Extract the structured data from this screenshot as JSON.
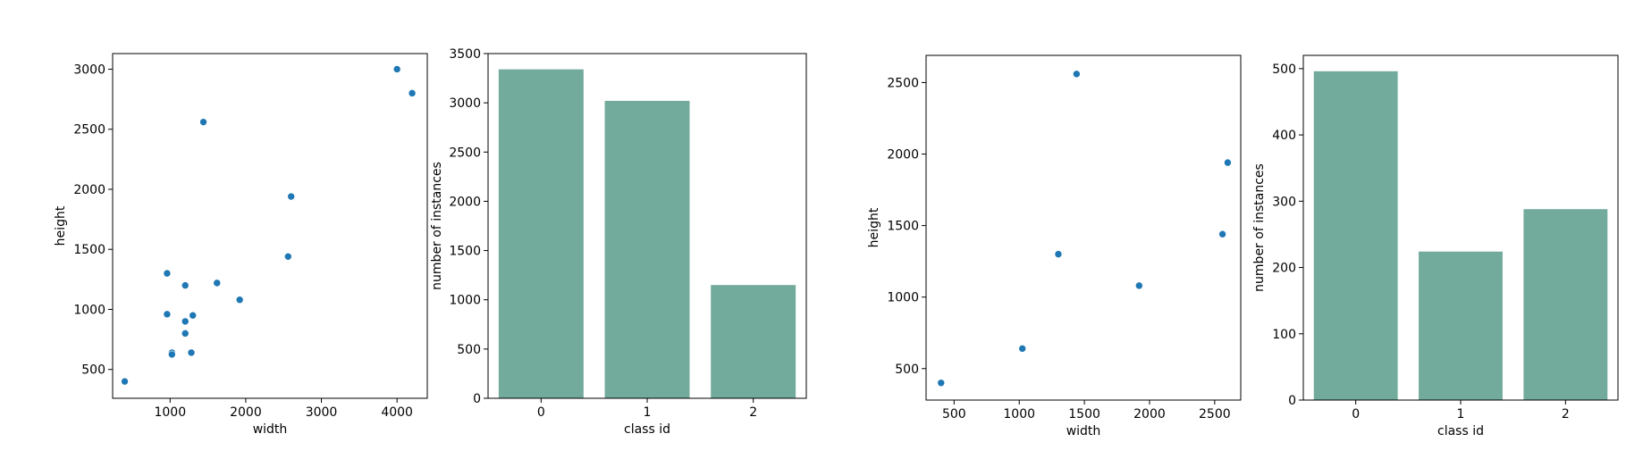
{
  "colors": {
    "scatter_point": "#1f77b4",
    "bar_fill": "#72aa9c",
    "axis": "#000000"
  },
  "chart_data": [
    {
      "type": "scatter",
      "xlabel": "width",
      "ylabel": "height",
      "xlim": [
        240,
        4400
      ],
      "ylim": [
        260,
        3130
      ],
      "xticks": [
        1000,
        2000,
        3000,
        4000
      ],
      "yticks": [
        500,
        1000,
        1500,
        2000,
        2500,
        3000
      ],
      "grid": false,
      "points": [
        {
          "x": 400,
          "y": 400
        },
        {
          "x": 960,
          "y": 1300
        },
        {
          "x": 960,
          "y": 960
        },
        {
          "x": 1024,
          "y": 640
        },
        {
          "x": 1024,
          "y": 625
        },
        {
          "x": 1200,
          "y": 1200
        },
        {
          "x": 1200,
          "y": 900
        },
        {
          "x": 1200,
          "y": 800
        },
        {
          "x": 1280,
          "y": 640
        },
        {
          "x": 1300,
          "y": 950
        },
        {
          "x": 1440,
          "y": 2560
        },
        {
          "x": 1620,
          "y": 1220
        },
        {
          "x": 1920,
          "y": 1080
        },
        {
          "x": 2560,
          "y": 1440
        },
        {
          "x": 2600,
          "y": 1940
        },
        {
          "x": 4000,
          "y": 3000
        },
        {
          "x": 4200,
          "y": 2800
        }
      ]
    },
    {
      "type": "bar",
      "xlabel": "class id",
      "ylabel": "number of instances",
      "categories": [
        "0",
        "1",
        "2"
      ],
      "values": [
        3340,
        3020,
        1150
      ],
      "ylim": [
        0,
        3500
      ],
      "yticks": [
        0,
        500,
        1000,
        1500,
        2000,
        2500,
        3000,
        3500
      ],
      "grid": false
    },
    {
      "type": "scatter",
      "xlabel": "width",
      "ylabel": "height",
      "xlim": [
        285,
        2700
      ],
      "ylim": [
        280,
        2690
      ],
      "xticks": [
        500,
        1000,
        1500,
        2000,
        2500
      ],
      "yticks": [
        500,
        1000,
        1500,
        2000,
        2500
      ],
      "grid": false,
      "points": [
        {
          "x": 400,
          "y": 400
        },
        {
          "x": 1024,
          "y": 640
        },
        {
          "x": 1300,
          "y": 1300
        },
        {
          "x": 1440,
          "y": 2560
        },
        {
          "x": 1920,
          "y": 1080
        },
        {
          "x": 2560,
          "y": 1440
        },
        {
          "x": 2600,
          "y": 1940
        }
      ]
    },
    {
      "type": "bar",
      "xlabel": "class id",
      "ylabel": "number of instances",
      "categories": [
        "0",
        "1",
        "2"
      ],
      "values": [
        496,
        224,
        288
      ],
      "ylim": [
        0,
        520
      ],
      "yticks": [
        0,
        100,
        200,
        300,
        400,
        500
      ],
      "grid": false
    }
  ]
}
